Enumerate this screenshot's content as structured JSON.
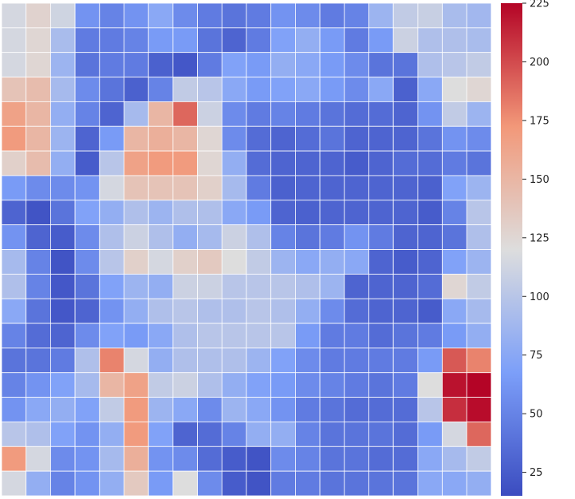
{
  "chart_data": {
    "type": "heatmap",
    "title": "",
    "xlabel": "",
    "ylabel": "",
    "colormap": "coolwarm",
    "vmin": 15,
    "vmax": 225,
    "grid_lines": "white",
    "colorbar": {
      "placement": "right",
      "ticks": [
        25,
        50,
        75,
        100,
        125,
        150,
        175,
        200,
        225
      ],
      "tick_labels": [
        "25",
        "50",
        "75",
        "100",
        "125",
        "150",
        "175",
        "200",
        "225"
      ]
    },
    "rows": 20,
    "cols": 20,
    "values": [
      [
        115,
        128,
        112,
        60,
        50,
        60,
        75,
        55,
        45,
        40,
        45,
        60,
        55,
        45,
        50,
        85,
        105,
        108,
        92,
        88
      ],
      [
        115,
        125,
        92,
        45,
        45,
        50,
        65,
        65,
        40,
        30,
        45,
        70,
        80,
        65,
        45,
        65,
        110,
        95,
        95,
        92
      ],
      [
        115,
        125,
        85,
        40,
        45,
        45,
        28,
        22,
        45,
        70,
        65,
        80,
        75,
        65,
        55,
        40,
        40,
        95,
        100,
        105
      ],
      [
        140,
        145,
        90,
        55,
        40,
        28,
        50,
        105,
        100,
        75,
        65,
        70,
        75,
        65,
        55,
        75,
        28,
        75,
        120,
        125
      ],
      [
        165,
        150,
        80,
        50,
        30,
        90,
        150,
        190,
        110,
        55,
        45,
        50,
        45,
        40,
        35,
        35,
        30,
        60,
        105,
        85
      ],
      [
        170,
        150,
        85,
        30,
        65,
        150,
        155,
        150,
        125,
        55,
        35,
        30,
        35,
        40,
        30,
        30,
        30,
        40,
        60,
        55
      ],
      [
        130,
        145,
        80,
        25,
        100,
        165,
        170,
        170,
        125,
        80,
        35,
        30,
        30,
        30,
        25,
        30,
        35,
        35,
        45,
        40
      ],
      [
        65,
        55,
        55,
        60,
        115,
        140,
        140,
        140,
        130,
        90,
        45,
        28,
        30,
        30,
        30,
        30,
        30,
        28,
        70,
        85
      ],
      [
        30,
        20,
        40,
        70,
        80,
        95,
        85,
        95,
        95,
        75,
        65,
        30,
        28,
        30,
        30,
        30,
        30,
        25,
        50,
        100
      ],
      [
        60,
        30,
        25,
        55,
        95,
        110,
        95,
        80,
        90,
        110,
        95,
        50,
        40,
        45,
        60,
        45,
        30,
        30,
        40,
        95
      ],
      [
        90,
        50,
        20,
        55,
        100,
        130,
        115,
        130,
        135,
        120,
        105,
        85,
        75,
        80,
        75,
        30,
        25,
        30,
        70,
        85
      ],
      [
        95,
        50,
        22,
        40,
        70,
        85,
        80,
        110,
        110,
        100,
        100,
        100,
        95,
        85,
        30,
        30,
        30,
        35,
        125,
        105
      ],
      [
        75,
        40,
        22,
        30,
        60,
        80,
        95,
        100,
        95,
        95,
        100,
        95,
        80,
        55,
        35,
        30,
        30,
        25,
        75,
        90
      ],
      [
        50,
        35,
        30,
        55,
        70,
        65,
        75,
        95,
        100,
        100,
        100,
        100,
        65,
        45,
        45,
        35,
        40,
        45,
        65,
        80
      ],
      [
        40,
        40,
        45,
        95,
        180,
        115,
        80,
        95,
        95,
        95,
        85,
        70,
        55,
        45,
        45,
        45,
        45,
        65,
        195,
        180
      ],
      [
        50,
        60,
        70,
        90,
        150,
        165,
        105,
        110,
        95,
        80,
        70,
        65,
        55,
        50,
        45,
        40,
        45,
        120,
        220,
        225
      ],
      [
        60,
        75,
        80,
        70,
        105,
        170,
        85,
        75,
        55,
        85,
        75,
        60,
        45,
        40,
        35,
        35,
        35,
        100,
        210,
        222
      ],
      [
        100,
        95,
        70,
        60,
        80,
        170,
        70,
        30,
        35,
        50,
        80,
        80,
        50,
        40,
        40,
        40,
        35,
        65,
        115,
        190
      ],
      [
        170,
        115,
        55,
        60,
        90,
        155,
        60,
        55,
        35,
        25,
        20,
        55,
        50,
        40,
        40,
        35,
        35,
        75,
        90,
        105
      ],
      [
        115,
        80,
        50,
        60,
        80,
        135,
        65,
        120,
        55,
        25,
        20,
        45,
        45,
        40,
        40,
        40,
        40,
        75,
        75,
        80
      ]
    ]
  }
}
